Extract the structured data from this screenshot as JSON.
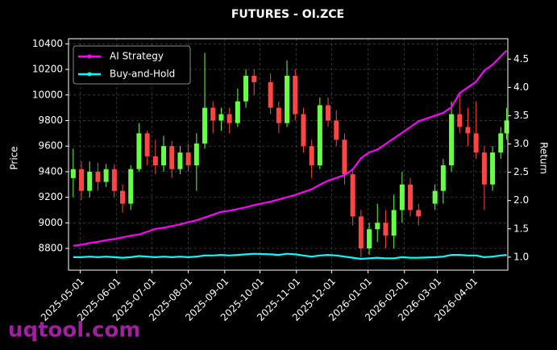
{
  "chart_data": {
    "type": "candlestick",
    "title": "FUTURES - OI.ZCE",
    "ylabel": "Price",
    "y2label": "Return",
    "watermark": "uqtool.com",
    "x": [
      "2025-04-25",
      "2025-05-02",
      "2025-05-09",
      "2025-05-16",
      "2025-05-23",
      "2025-05-30",
      "2025-06-06",
      "2025-06-13",
      "2025-06-20",
      "2025-06-27",
      "2025-07-04",
      "2025-07-11",
      "2025-07-18",
      "2025-07-25",
      "2025-08-01",
      "2025-08-08",
      "2025-08-15",
      "2025-08-22",
      "2025-08-29",
      "2025-09-05",
      "2025-09-12",
      "2025-09-19",
      "2025-09-26",
      "2025-10-10",
      "2025-10-17",
      "2025-10-24",
      "2025-10-31",
      "2025-11-07",
      "2025-11-14",
      "2025-11-21",
      "2025-11-28",
      "2025-12-05",
      "2025-12-12",
      "2025-12-19",
      "2025-12-26",
      "2026-01-02",
      "2026-01-09",
      "2026-01-16",
      "2026-01-23",
      "2026-01-30",
      "2026-02-06",
      "2026-02-13",
      "2026-02-27",
      "2026-03-06",
      "2026-03-13",
      "2026-03-20",
      "2026-03-27",
      "2026-04-03",
      "2026-04-10",
      "2026-04-17",
      "2026-04-24",
      "2026-04-29"
    ],
    "ohlc": {
      "open": [
        9350,
        9420,
        9250,
        9400,
        9320,
        9420,
        9250,
        9150,
        9420,
        9700,
        9520,
        9450,
        9600,
        9420,
        9550,
        9450,
        9620,
        9900,
        9800,
        9850,
        9780,
        9950,
        10150,
        10100,
        9900,
        9780,
        10150,
        9850,
        9600,
        9450,
        9920,
        9800,
        9650,
        9380,
        9050,
        8800,
        8950,
        9000,
        8900,
        9100,
        9300,
        9100,
        9150,
        9250,
        9450,
        9850,
        9750,
        9700,
        9550,
        9300,
        9550,
        9700
      ],
      "high": [
        9580,
        9480,
        9480,
        9470,
        9460,
        9460,
        9300,
        9450,
        9780,
        9720,
        9650,
        9680,
        9640,
        9600,
        9620,
        9700,
        10330,
        9950,
        9900,
        9900,
        10050,
        10200,
        10200,
        10170,
        9950,
        10270,
        10200,
        9900,
        9650,
        9980,
        9980,
        9880,
        9700,
        9420,
        9100,
        9000,
        9150,
        9100,
        9220,
        9400,
        9350,
        9150,
        9300,
        9500,
        9950,
        10000,
        9900,
        9950,
        9600,
        9600,
        9750,
        9900
      ],
      "low": [
        9200,
        9180,
        9200,
        9250,
        9280,
        9200,
        9080,
        9100,
        9400,
        9450,
        9380,
        9400,
        9350,
        9380,
        9400,
        9250,
        9580,
        9700,
        9720,
        9700,
        9750,
        9900,
        10000,
        9850,
        9700,
        9750,
        9800,
        9550,
        9350,
        9420,
        9750,
        9600,
        9300,
        8980,
        8730,
        8750,
        8850,
        8800,
        8800,
        9000,
        9050,
        8980,
        9100,
        9150,
        9400,
        9700,
        9600,
        9500,
        9100,
        9250,
        9500,
        9650
      ],
      "close": [
        9420,
        9250,
        9400,
        9320,
        9420,
        9250,
        9150,
        9420,
        9700,
        9520,
        9450,
        9600,
        9420,
        9550,
        9450,
        9620,
        9900,
        9800,
        9850,
        9780,
        9950,
        10150,
        10100,
        9900,
        9780,
        10150,
        9850,
        9600,
        9450,
        9920,
        9800,
        9650,
        9380,
        9050,
        8800,
        8950,
        9000,
        8900,
        9100,
        9300,
        9100,
        9050,
        9250,
        9450,
        9850,
        9750,
        9700,
        9550,
        9300,
        9550,
        9700,
        9800
      ]
    },
    "up_color": "#66ff44",
    "down_color": "#ff4444",
    "series": [
      {
        "name": "AI Strategy",
        "color": "#ff00ff",
        "axis": "y2",
        "values": [
          1.2,
          1.22,
          1.25,
          1.27,
          1.3,
          1.32,
          1.35,
          1.38,
          1.4,
          1.45,
          1.5,
          1.52,
          1.55,
          1.58,
          1.62,
          1.65,
          1.7,
          1.75,
          1.8,
          1.82,
          1.85,
          1.88,
          1.92,
          1.98,
          2.02,
          2.06,
          2.1,
          2.15,
          2.2,
          2.28,
          2.35,
          2.4,
          2.45,
          2.55,
          2.75,
          2.85,
          2.9,
          3.0,
          3.1,
          3.2,
          3.3,
          3.4,
          3.5,
          3.55,
          3.65,
          3.9,
          4.0,
          4.1,
          4.3,
          4.4,
          4.55,
          4.65
        ]
      },
      {
        "name": "Buy-and-Hold",
        "color": "#00ffff",
        "axis": "y2",
        "values": [
          1.0,
          1.0,
          1.01,
          1.0,
          1.01,
          1.0,
          0.99,
          1.0,
          1.02,
          1.01,
          1.0,
          1.01,
          1.0,
          1.01,
          1.0,
          1.01,
          1.03,
          1.03,
          1.04,
          1.03,
          1.04,
          1.05,
          1.06,
          1.05,
          1.04,
          1.06,
          1.05,
          1.03,
          1.01,
          1.03,
          1.04,
          1.03,
          1.01,
          0.99,
          0.97,
          0.98,
          0.99,
          0.98,
          0.98,
          1.0,
          0.99,
          0.99,
          1.0,
          1.01,
          1.04,
          1.04,
          1.03,
          1.03,
          1.0,
          1.01,
          1.03,
          1.04
        ]
      }
    ],
    "xlim": [
      "2025-04-21",
      "2026-04-30"
    ],
    "xticks": [
      "2025-05-01",
      "2025-06-01",
      "2025-07-01",
      "2025-08-01",
      "2025-09-01",
      "2025-10-01",
      "2025-11-01",
      "2025-12-01",
      "2026-01-01",
      "2026-02-01",
      "2026-03-01",
      "2026-04-01"
    ],
    "ylim": [
      8630,
      10440
    ],
    "yticks": [
      8800,
      9000,
      9200,
      9400,
      9600,
      9800,
      10000,
      10200,
      10400
    ],
    "y2lim": [
      0.77,
      4.86
    ],
    "y2ticks": [
      {
        "value": 1,
        "label": "1.0"
      },
      1.5,
      {
        "value": 2,
        "label": "2.0"
      },
      2.5,
      {
        "value": 3,
        "label": "3.0"
      },
      3.5,
      {
        "value": 4,
        "label": "4.0"
      },
      4.5
    ],
    "grid": true,
    "legend": "upper left"
  }
}
